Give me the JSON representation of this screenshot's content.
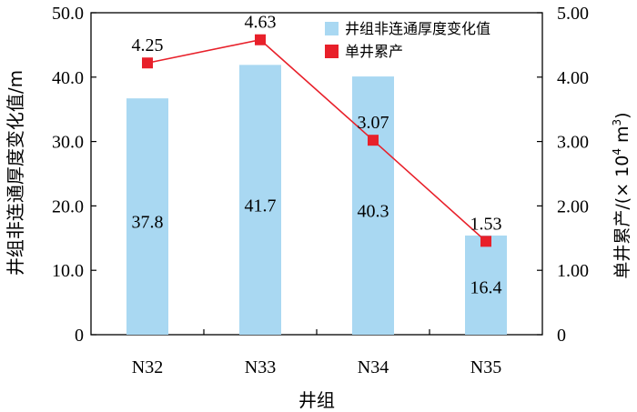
{
  "colors": {
    "bar": "#a9d8f2",
    "line": "#e8202a",
    "marker": "#e8202a",
    "axis": "#000000"
  },
  "chart_data": {
    "type": "bar+line",
    "categories": [
      "N32",
      "N33",
      "N34",
      "N35"
    ],
    "xlabel": "井组",
    "ylabel_left": "井组非连通厚度变化值/m",
    "ylabel_right_prefix": "单井累产/(× 10",
    "ylabel_right_sup": "4",
    "ylabel_right_mid": " m",
    "ylabel_right_sup2": "3",
    "ylabel_right_suffix": ")",
    "ylim_left": [
      0,
      50
    ],
    "ylim_right": [
      0,
      5
    ],
    "yticks_left": [
      "0",
      "10.0",
      "20.0",
      "30.0",
      "40.0",
      "50.0"
    ],
    "yticks_right": [
      "0",
      "1.00",
      "2.00",
      "3.00",
      "4.00",
      "5.00"
    ],
    "legend_position": "top-right",
    "series": [
      {
        "name": "井组非连通厚度变化值",
        "kind": "bar",
        "axis": "left",
        "values": [
          37.8,
          41.7,
          40.3,
          16.4
        ],
        "plot_values": [
          36.7,
          41.9,
          40.1,
          15.4
        ],
        "labels": [
          "37.8",
          "41.7",
          "40.3",
          "16.4"
        ]
      },
      {
        "name": "单井累产",
        "kind": "line",
        "axis": "right",
        "values": [
          4.25,
          4.63,
          3.07,
          1.53
        ],
        "plot_values": [
          4.22,
          4.58,
          3.02,
          1.45
        ],
        "labels": [
          "4.25",
          "4.63",
          "3.07",
          "1.53"
        ]
      }
    ]
  }
}
